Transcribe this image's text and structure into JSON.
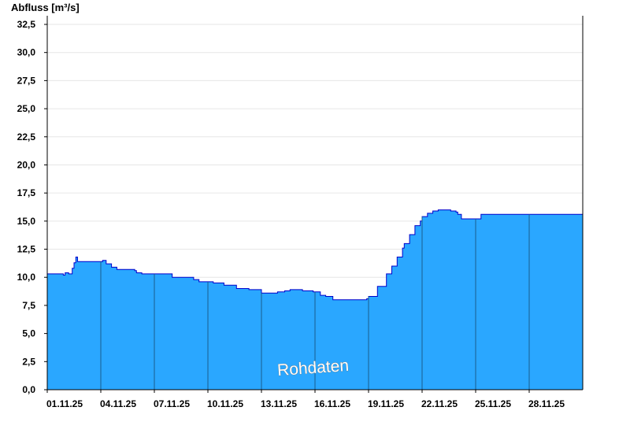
{
  "chart_data": {
    "type": "area",
    "ylabel": "Abfluss [m³/s]",
    "ylim": [
      0,
      32.5
    ],
    "y_ticks": [
      "0,0",
      "2,5",
      "5,0",
      "7,5",
      "10,0",
      "12,5",
      "15,0",
      "17,5",
      "20,0",
      "22,5",
      "25,0",
      "27,5",
      "30,0",
      "32,5"
    ],
    "x_ticks": [
      "01.11.25",
      "04.11.25",
      "07.11.25",
      "10.11.25",
      "13.11.25",
      "16.11.25",
      "19.11.25",
      "22.11.25",
      "25.11.25",
      "28.11.25"
    ],
    "watermark": "Rohdaten",
    "grid": "horizontal",
    "colors": {
      "fill": "#2aa7ff",
      "line": "#0000cc",
      "vline": "#1a5d8c"
    },
    "series": [
      {
        "x": [
          0,
          0.5,
          0.9,
          1.0,
          1.2,
          1.4,
          1.5,
          1.6,
          1.7,
          1.8,
          1.9,
          2.0,
          2.2,
          2.5,
          2.8,
          3.0,
          3.1,
          3.3,
          3.6,
          3.9,
          4.2,
          4.5,
          4.9,
          5.0,
          5.3,
          5.7,
          6.0,
          6.3,
          6.6,
          6.9,
          7.0,
          7.3,
          7.7,
          8.0,
          8.2,
          8.5,
          8.8,
          9.0,
          9.3,
          9.6,
          9.9,
          10.0,
          10.3,
          10.6,
          11.0,
          11.3,
          11.7,
          12.0,
          12.3,
          12.6,
          12.9,
          13.0,
          13.3,
          13.6,
          14.0,
          14.3,
          14.6,
          14.9,
          15.0,
          15.3,
          15.6,
          16.0,
          16.3,
          16.6,
          16.9,
          17.0,
          17.3,
          17.6,
          17.9,
          18.0,
          18.5,
          19.0,
          19.3,
          19.6,
          19.9,
          20.0,
          20.3,
          20.6,
          20.9,
          21.0,
          21.3,
          21.6,
          21.9,
          22.0,
          22.3,
          22.6,
          22.9,
          23.0,
          23.2,
          23.4,
          23.7,
          24.0,
          24.3,
          24.6,
          24.9,
          25.0,
          25.2,
          25.5,
          25.8,
          26.0,
          26.3,
          26.5,
          26.8,
          27.0,
          27.3,
          27.6,
          27.9,
          28.0,
          28.3,
          28.6,
          29.0,
          29.4,
          29.7,
          30.0
        ],
        "values": [
          10.3,
          10.3,
          10.2,
          10.4,
          10.3,
          10.8,
          11.3,
          11.8,
          11.4,
          11.4,
          11.4,
          11.4,
          11.4,
          11.4,
          11.4,
          11.4,
          11.5,
          11.2,
          10.9,
          10.7,
          10.7,
          10.7,
          10.6,
          10.4,
          10.3,
          10.3,
          10.3,
          10.3,
          10.3,
          10.3,
          10.0,
          10.0,
          10.0,
          10.0,
          9.8,
          9.6,
          9.6,
          9.6,
          9.5,
          9.5,
          9.3,
          9.3,
          9.3,
          9.0,
          9.0,
          8.9,
          8.9,
          8.6,
          8.6,
          8.6,
          8.7,
          8.7,
          8.8,
          8.9,
          8.9,
          8.8,
          8.8,
          8.7,
          8.7,
          8.4,
          8.3,
          8.0,
          8.0,
          8.0,
          8.0,
          8.0,
          8.0,
          8.0,
          8.1,
          8.3,
          9.2,
          10.3,
          11.0,
          11.8,
          12.6,
          13.0,
          13.8,
          14.6,
          15.0,
          15.4,
          15.7,
          15.9,
          16.0,
          16.0,
          16.0,
          15.9,
          15.8,
          15.6,
          15.2,
          15.2,
          15.2,
          15.2,
          15.6,
          15.6,
          15.6,
          15.6,
          15.6,
          15.6,
          15.6,
          15.6,
          15.6,
          15.6,
          15.6,
          15.6,
          15.6,
          15.6,
          15.6,
          15.6,
          15.6,
          15.6,
          15.6,
          15.6,
          15.6,
          15.6
        ]
      }
    ]
  }
}
